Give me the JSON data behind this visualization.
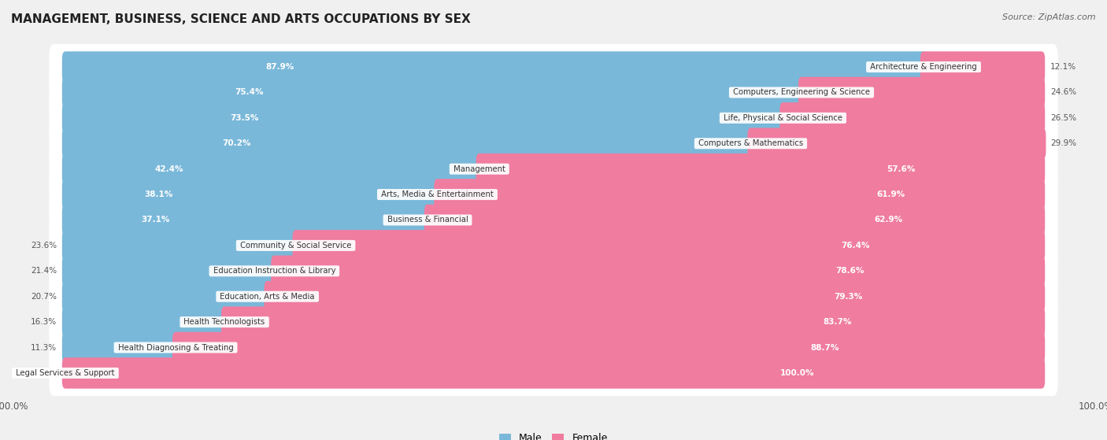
{
  "title": "MANAGEMENT, BUSINESS, SCIENCE AND ARTS OCCUPATIONS BY SEX",
  "source": "Source: ZipAtlas.com",
  "categories": [
    "Architecture & Engineering",
    "Computers, Engineering & Science",
    "Life, Physical & Social Science",
    "Computers & Mathematics",
    "Management",
    "Arts, Media & Entertainment",
    "Business & Financial",
    "Community & Social Service",
    "Education Instruction & Library",
    "Education, Arts & Media",
    "Health Technologists",
    "Health Diagnosing & Treating",
    "Legal Services & Support"
  ],
  "male": [
    87.9,
    75.4,
    73.5,
    70.2,
    42.4,
    38.1,
    37.1,
    23.6,
    21.4,
    20.7,
    16.3,
    11.3,
    0.0
  ],
  "female": [
    12.1,
    24.6,
    26.5,
    29.9,
    57.6,
    61.9,
    62.9,
    76.4,
    78.6,
    79.3,
    83.7,
    88.7,
    100.0
  ],
  "male_color": "#7ab8d9",
  "female_color": "#f07ca0",
  "background_color": "#f0f0f0",
  "bar_background": "#ffffff",
  "bar_height": 0.62,
  "legend_male": "Male",
  "legend_female": "Female",
  "male_pct_threshold": 30,
  "female_pct_threshold": 30
}
